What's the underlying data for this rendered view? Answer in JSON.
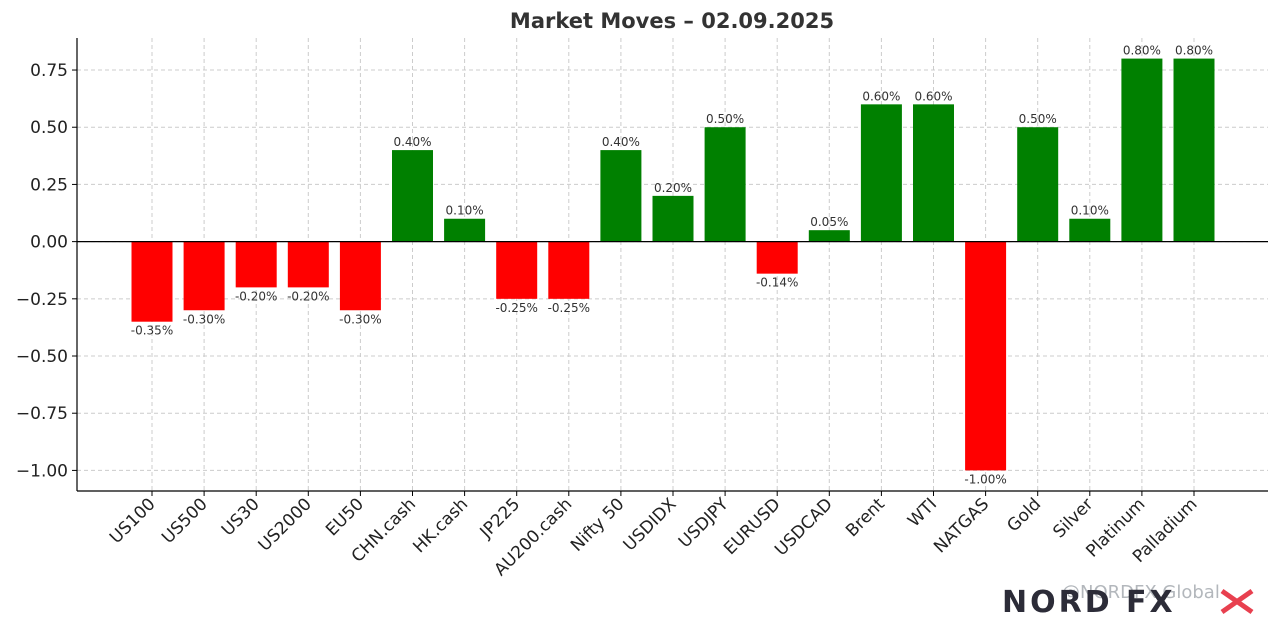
{
  "chart_data": {
    "type": "bar",
    "title": "Market Moves – 02.09.2025",
    "xlabel": "",
    "ylabel": "",
    "categories": [
      "US100",
      "US500",
      "US30",
      "US2000",
      "EU50",
      "CHN.cash",
      "HK.cash",
      "JP225",
      "AU200.cash",
      "Nifty 50",
      "USDIDX",
      "USDJPY",
      "EURUSD",
      "USDCAD",
      "Brent",
      "WTI",
      "NATGAS",
      "Gold",
      "Silver",
      "Platinum",
      "Palladium"
    ],
    "values": [
      -0.35,
      -0.3,
      -0.2,
      -0.2,
      -0.3,
      0.4,
      0.1,
      -0.25,
      -0.25,
      0.4,
      0.2,
      0.5,
      -0.14,
      0.05,
      0.6,
      0.6,
      -1.0,
      0.5,
      0.1,
      0.8,
      0.8
    ],
    "data_labels": [
      "-0.35%",
      "-0.30%",
      "-0.20%",
      "-0.20%",
      "-0.30%",
      "0.40%",
      "0.10%",
      "-0.25%",
      "-0.25%",
      "0.40%",
      "0.20%",
      "0.50%",
      "-0.14%",
      "0.05%",
      "0.60%",
      "0.60%",
      "-1.00%",
      "0.50%",
      "0.10%",
      "0.80%",
      "0.80%"
    ],
    "ylim": [
      -1.09,
      0.89
    ],
    "yticks": [
      0.75,
      0.5,
      0.25,
      0.0,
      -0.25,
      -0.5,
      -0.75,
      -1.0
    ],
    "ytick_labels": [
      "0.75",
      "0.50",
      "0.25",
      "0.00",
      "−0.25",
      "−0.50",
      "−0.75",
      "−1.00"
    ],
    "grid": true,
    "colors": {
      "positive": "#008000",
      "negative": "#ff0000",
      "grid": "#cccccc",
      "axis": "#000000"
    }
  },
  "watermark": {
    "text": "@NORDFX Global"
  },
  "logo": {
    "text": "NORD FX"
  }
}
